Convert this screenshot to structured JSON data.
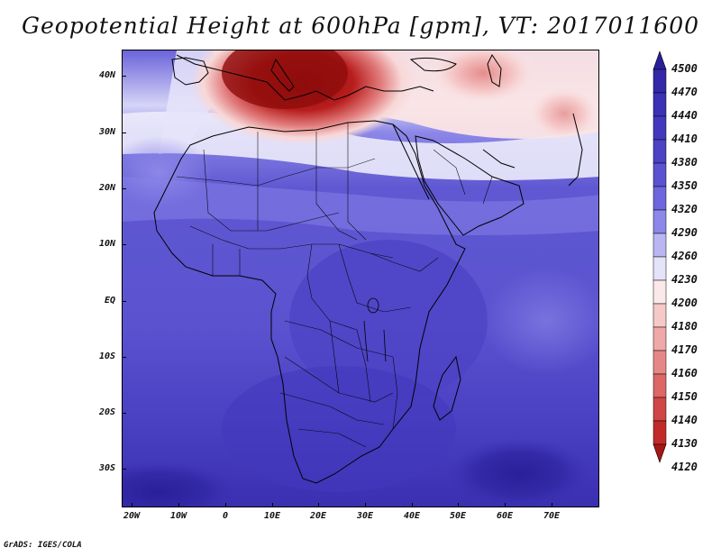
{
  "title": "Geopotential Height at 600hPa [gpm], VT: 2017011600",
  "credit": "GrADS: IGES/COLA",
  "lat_labels": [
    "40N",
    "30N",
    "20N",
    "10N",
    "EQ",
    "10S",
    "20S",
    "30S"
  ],
  "lon_labels": [
    "20W",
    "10W",
    "0",
    "10E",
    "20E",
    "30E",
    "40E",
    "50E",
    "60E",
    "70E"
  ],
  "colorbar": {
    "levels": [
      "4500",
      "4470",
      "4440",
      "4410",
      "4380",
      "4350",
      "4320",
      "4290",
      "4260",
      "4230",
      "4200",
      "4180",
      "4170",
      "4160",
      "4150",
      "4140",
      "4130",
      "4120"
    ],
    "colors": [
      "#2a1f9a",
      "#3328a8",
      "#3b31b4",
      "#4338bd",
      "#4b42c4",
      "#5a52d0",
      "#6d66dc",
      "#8c87e8",
      "#b9b6f2",
      "#e4e3fa",
      "#fbe9e9",
      "#f6c9c9",
      "#efa9a9",
      "#e68787",
      "#dd6666",
      "#d04545",
      "#c22a2a",
      "#a81515"
    ]
  },
  "map": {
    "lon_range": [
      -22,
      80
    ],
    "lat_range": [
      -37,
      45
    ],
    "colors": {
      "deep_blue": "#3a2fb0",
      "mid_blue": "#5b54cf",
      "light_blue": "#8a85e6",
      "pale": "#e6e4fa",
      "pink": "#f2b8b8",
      "red": "#c02626",
      "dark_red": "#991010"
    }
  }
}
